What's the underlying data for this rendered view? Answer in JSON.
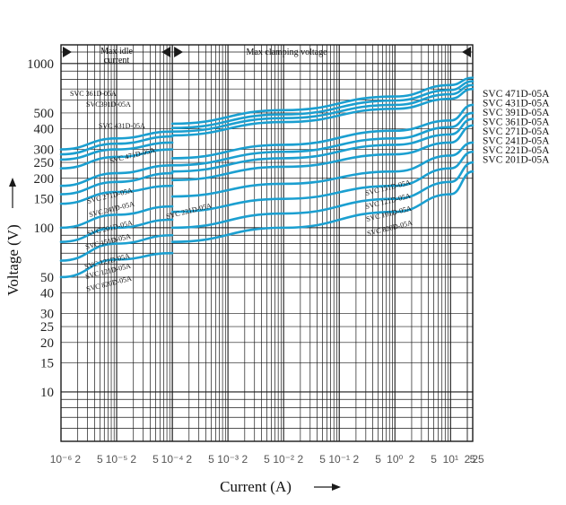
{
  "chart_data": {
    "type": "line",
    "title": "",
    "xlabel": "Current (A)",
    "ylabel": "Voltage (V)",
    "x_scale": "log",
    "y_scale": "log",
    "xlim": [
      1e-06,
      25
    ],
    "ylim": [
      5,
      1300
    ],
    "x_tick_labels": [
      "10⁻⁶",
      "2",
      "5",
      "10⁻⁵",
      "2",
      "5",
      "10⁻⁴",
      "2",
      "5",
      "10⁻³",
      "2",
      "5",
      "10⁻²",
      "2",
      "5",
      "10⁻¹",
      "2",
      "5",
      "10⁰",
      "2",
      "5",
      "10¹",
      "2",
      "5",
      "10²",
      "25"
    ],
    "y_tick_labels": [
      "1000",
      "500",
      "400",
      "300",
      "250",
      "200",
      "150",
      "100",
      "50",
      "40",
      "30",
      "25",
      "20",
      "15",
      "10"
    ],
    "y_tick_values": [
      1000,
      500,
      400,
      300,
      250,
      200,
      150,
      100,
      50,
      40,
      30,
      25,
      20,
      15,
      10
    ],
    "region_labels": {
      "idle": "Max idle current",
      "clamp": "Max clamping voltage"
    },
    "grid": true,
    "legend": "right",
    "series": [
      {
        "name": "SVC 471D-05A",
        "label": "SVC 471D-05A",
        "idle_x": [
          1e-06,
          1e-05,
          0.0001
        ],
        "idle_y": [
          300,
          350,
          385
        ],
        "clamp_x": [
          0.0001,
          0.01,
          1,
          10,
          25
        ],
        "clamp_y": [
          430,
          520,
          630,
          740,
          820
        ]
      },
      {
        "name": "SVC 431D-05A",
        "label": "SVC 431D-05A",
        "idle_x": [
          1e-06,
          1e-05,
          0.0001
        ],
        "idle_y": [
          280,
          325,
          360
        ],
        "clamp_x": [
          0.0001,
          0.01,
          1,
          10,
          25
        ],
        "clamp_y": [
          405,
          490,
          595,
          690,
          780
        ]
      },
      {
        "name": "SVC 391D-05A",
        "label": "SVC391D-05A",
        "idle_x": [
          1e-06,
          1e-05,
          0.0001
        ],
        "idle_y": [
          260,
          300,
          330
        ],
        "clamp_x": [
          0.0001,
          0.01,
          1,
          10,
          25
        ],
        "clamp_y": [
          385,
          465,
          560,
          650,
          740
        ]
      },
      {
        "name": "SVC 361D-05A",
        "label": "SVC 361D-05A",
        "idle_x": [
          1e-06,
          1e-05,
          0.0001
        ],
        "idle_y": [
          230,
          270,
          300
        ],
        "clamp_x": [
          0.0001,
          0.01,
          1,
          10,
          25
        ],
        "clamp_y": [
          365,
          440,
          530,
          610,
          700
        ]
      },
      {
        "name": "SVC 271D-05A",
        "label": "SVC 271D-05A",
        "idle_x": [
          1e-06,
          1e-05,
          0.0001
        ],
        "idle_y": [
          180,
          215,
          240
        ],
        "clamp_x": [
          0.0001,
          0.01,
          1,
          10,
          25
        ],
        "clamp_y": [
          265,
          320,
          390,
          450,
          560
        ]
      },
      {
        "name": "SVC 241D-05A",
        "label": "SVC 241D-05A",
        "idle_x": [
          1e-06,
          1e-05,
          0.0001
        ],
        "idle_y": [
          160,
          190,
          215
        ],
        "clamp_x": [
          0.0001,
          0.01,
          1,
          10,
          25
        ],
        "clamp_y": [
          240,
          290,
          350,
          410,
          500
        ]
      },
      {
        "name": "SVC 221D-05A",
        "label": "SVC 221D-05A",
        "idle_x": [],
        "idle_y": [],
        "clamp_x": [
          0.0001,
          0.01,
          1,
          10,
          25
        ],
        "clamp_y": [
          220,
          265,
          320,
          370,
          460
        ]
      },
      {
        "name": "SVC 201D-05A",
        "label": "SVC 201D-05A",
        "idle_x": [
          1e-06,
          1e-05,
          0.0001
        ],
        "idle_y": [
          140,
          165,
          180
        ],
        "clamp_x": [
          0.0001,
          0.01,
          1,
          10,
          25
        ],
        "clamp_y": [
          195,
          235,
          280,
          330,
          420
        ]
      },
      {
        "name": "SVC 151D-05A",
        "label": "SVC 151D-05A",
        "idle_x": [
          1e-06,
          1e-05,
          0.0001
        ],
        "idle_y": [
          100,
          120,
          135
        ],
        "clamp_x": [
          0.0001,
          0.01,
          1,
          10,
          25
        ],
        "clamp_y": [
          155,
          185,
          220,
          275,
          330
        ]
      },
      {
        "name": "SVC 121D-05A",
        "label": "SVC 121D-05A",
        "idle_x": [
          1e-06,
          1e-05,
          0.0001
        ],
        "idle_y": [
          82,
          100,
          112
        ],
        "clamp_x": [
          0.0001,
          0.01,
          1,
          10,
          25
        ],
        "clamp_y": [
          125,
          150,
          180,
          230,
          290
        ]
      },
      {
        "name": "SVC 101D-05A",
        "label": "SVC 101D-05A",
        "idle_x": [
          1e-06,
          1e-05,
          0.0001
        ],
        "idle_y": [
          63,
          80,
          90
        ],
        "clamp_x": [
          0.0001,
          0.01,
          1,
          10,
          25
        ],
        "clamp_y": [
          100,
          122,
          150,
          190,
          250
        ]
      },
      {
        "name": "SVC 820D-05A",
        "label": "SVC 820D-05A",
        "idle_x": [
          1e-06,
          1e-05,
          0.0001
        ],
        "idle_y": [
          50,
          64,
          70
        ],
        "clamp_x": [
          0.0001,
          0.01,
          1,
          10,
          25
        ],
        "clamp_y": [
          82,
          100,
          125,
          160,
          220
        ]
      }
    ],
    "curve_labels_left": [
      "SVC 361D-05A",
      "SVC391D-05A",
      "SVC 431D-05A",
      "SVC 471D-05A",
      "SVC 271D-05A",
      "SVC 241D-05A",
      "SVC 201D-05A",
      "SVC 151D-05A",
      "SVC 121D-05A",
      "SVC 121D-05A",
      "SVC 820D-05A"
    ],
    "curve_labels_mid": [
      "SVC 221D-05A"
    ],
    "curve_labels_right": [
      "SVC 151D-05A",
      "SVC 121D-05A",
      "SVC 101D-05A",
      "SVC 820D-05A"
    ],
    "right_legend": [
      "SVC   471D-05A",
      "SVC   431D-05A",
      "SVC 391D-05A",
      "SVC 361D-05A",
      "SVC   271D-05A",
      "SVC 241D-05A",
      "SVC   221D-05A",
      "SVC  201D-05A"
    ]
  },
  "colors": {
    "curve": "#1b9fd0",
    "grid": "#1a1a1a",
    "text": "#111111"
  }
}
